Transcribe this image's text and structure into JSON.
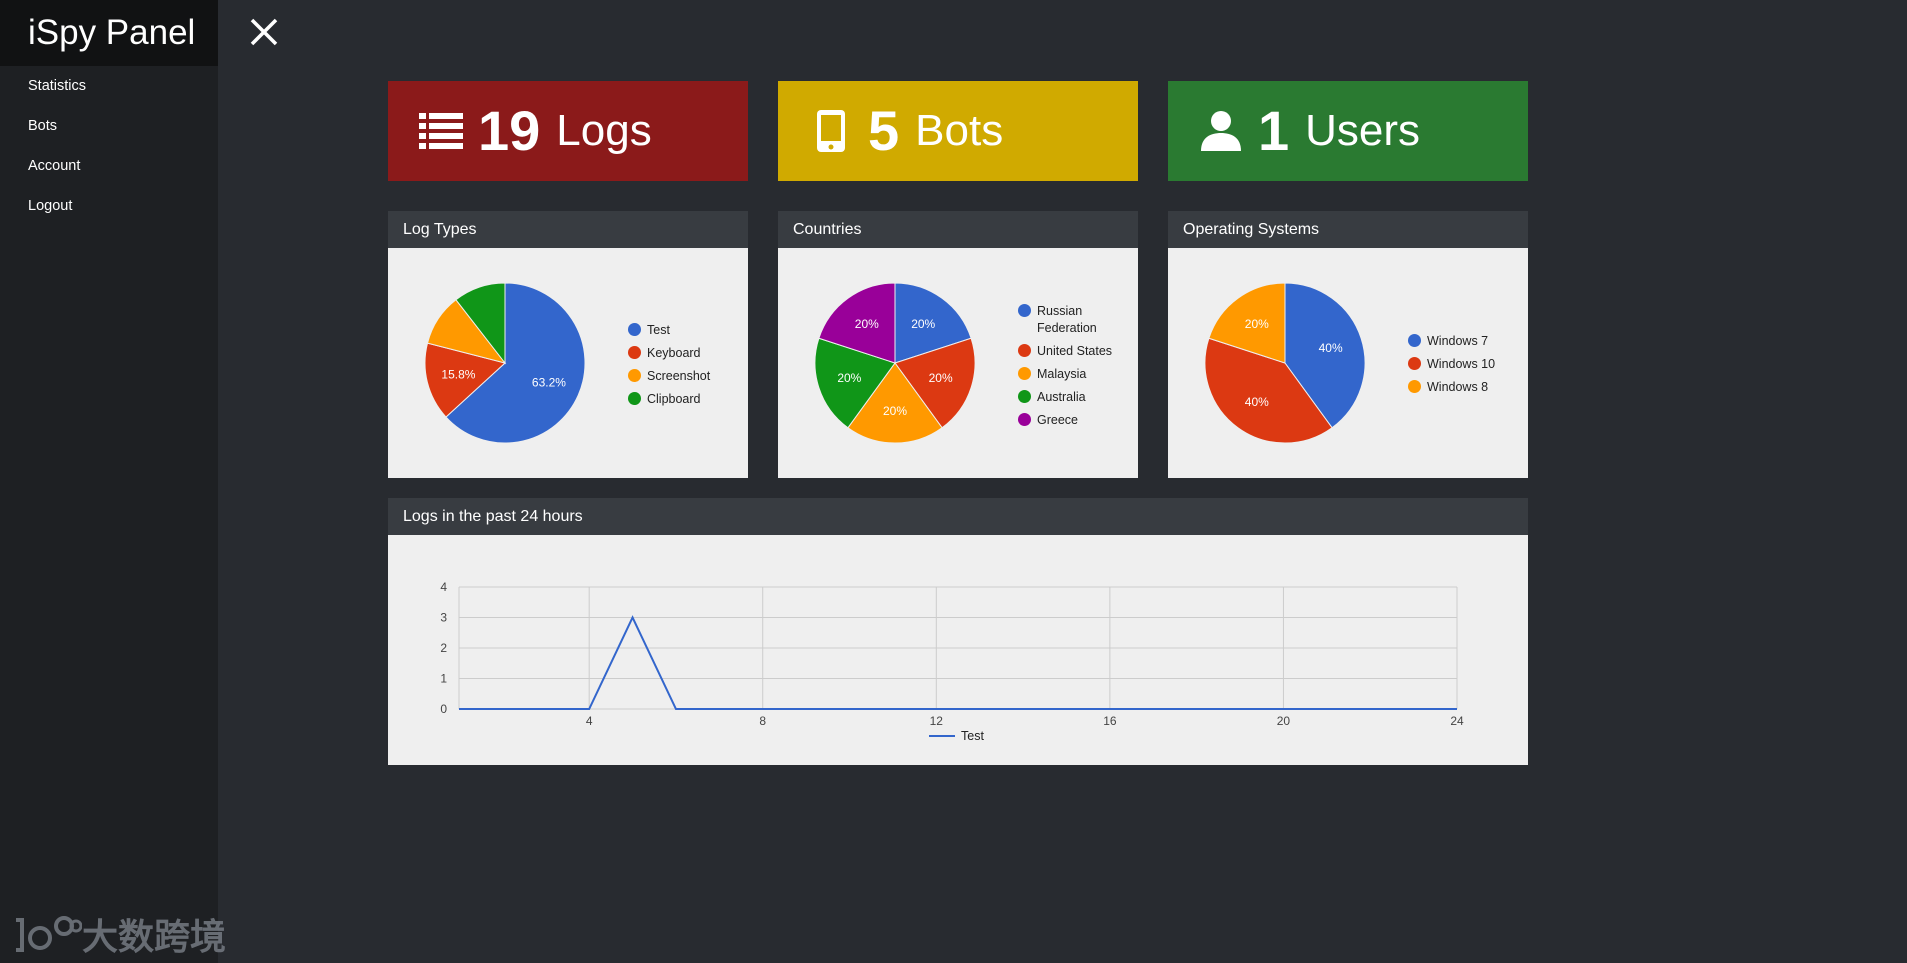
{
  "sidebar": {
    "brand": "iSpy Panel",
    "items": [
      {
        "label": "Statistics"
      },
      {
        "label": "Bots"
      },
      {
        "label": "Account"
      },
      {
        "label": "Logout"
      }
    ]
  },
  "stats": {
    "logs": {
      "value": "19",
      "label": "Logs",
      "color": "#8b1a1a"
    },
    "bots": {
      "value": "5",
      "label": "Bots",
      "color": "#d0aa00"
    },
    "users": {
      "value": "1",
      "label": "Users",
      "color": "#2a7a31"
    }
  },
  "panels": {
    "log_types": {
      "title": "Log Types"
    },
    "countries": {
      "title": "Countries"
    },
    "os": {
      "title": "Operating Systems"
    },
    "logs24": {
      "title": "Logs in the past 24 hours"
    }
  },
  "chart_data": [
    {
      "type": "pie",
      "id": "log_types",
      "labels": [
        "Test",
        "Keyboard",
        "Screenshot",
        "Clipboard"
      ],
      "values": [
        63.2,
        15.8,
        10.5,
        10.5
      ],
      "slice_labels": [
        "63.2%",
        "15.8%",
        "",
        ""
      ],
      "colors": [
        "#3366cc",
        "#dc3912",
        "#ff9900",
        "#109618"
      ],
      "legend": "right"
    },
    {
      "type": "pie",
      "id": "countries",
      "labels": [
        "Russian Federation",
        "United States",
        "Malaysia",
        "Australia",
        "Greece"
      ],
      "values": [
        20,
        20,
        20,
        20,
        20
      ],
      "slice_labels": [
        "20%",
        "20%",
        "20%",
        "20%",
        "20%"
      ],
      "colors": [
        "#3366cc",
        "#dc3912",
        "#ff9900",
        "#109618",
        "#990099"
      ],
      "legend": "right"
    },
    {
      "type": "pie",
      "id": "os",
      "labels": [
        "Windows 7",
        "Windows 10",
        "Windows 8"
      ],
      "values": [
        40,
        40,
        20
      ],
      "slice_labels": [
        "40%",
        "40%",
        "20%"
      ],
      "colors": [
        "#3366cc",
        "#dc3912",
        "#ff9900"
      ],
      "legend": "right"
    },
    {
      "type": "line",
      "id": "logs24",
      "x": [
        0,
        1,
        2,
        3,
        4,
        5,
        6,
        7,
        8,
        9,
        10,
        11,
        12,
        13,
        14,
        15,
        16,
        17,
        18,
        19,
        20,
        21,
        22,
        23,
        24
      ],
      "series": [
        {
          "name": "Test",
          "values": [
            0,
            0,
            0,
            0,
            0,
            3,
            0,
            0,
            0,
            0,
            0,
            0,
            0,
            0,
            0,
            0,
            0,
            0,
            0,
            0,
            0,
            0,
            0,
            0,
            0
          ],
          "color": "#3366cc"
        }
      ],
      "xticks": [
        4,
        8,
        12,
        16,
        20,
        24
      ],
      "yticks": [
        0,
        1,
        2,
        3,
        4
      ],
      "xlim": [
        1,
        24
      ],
      "ylim": [
        0,
        4
      ],
      "grid": true,
      "legend": "bottom"
    }
  ],
  "icons": {
    "logs": "list-icon",
    "bots": "phone-icon",
    "users": "user-icon",
    "close": "close-icon"
  },
  "watermark": {
    "text": "大数跨境"
  }
}
